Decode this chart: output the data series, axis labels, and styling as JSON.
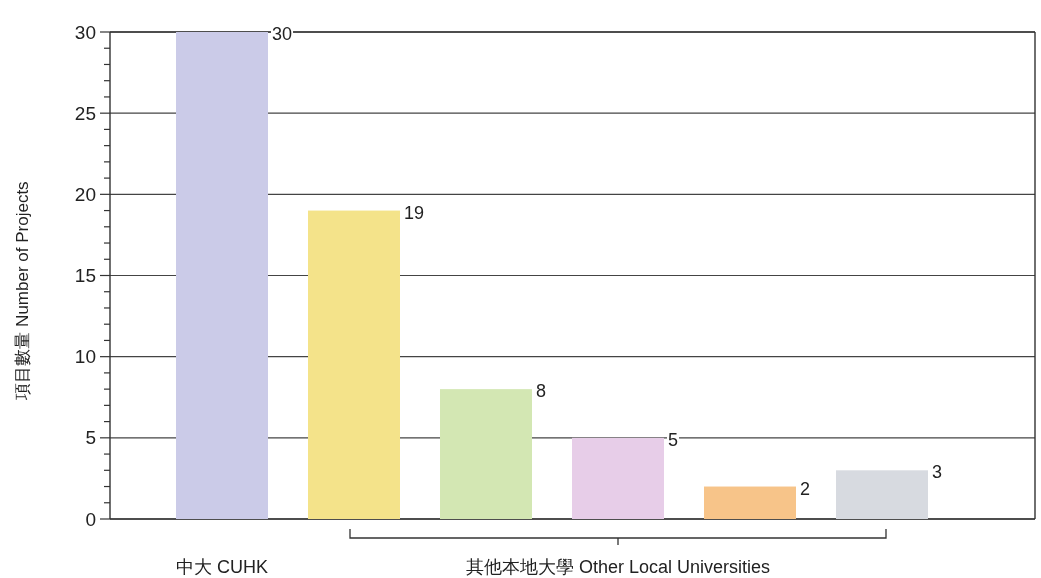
{
  "chart_data": {
    "type": "bar",
    "ylabel": "項目數量 Number of Projects",
    "categories": [
      "中大 CUHK",
      null,
      null,
      null,
      null,
      null
    ],
    "values": [
      30,
      19,
      8,
      5,
      2,
      3
    ],
    "colors": [
      "#cbcbe8",
      "#f4e38a",
      "#d3e7b3",
      "#e7cde8",
      "#f7c489",
      "#d7dae0"
    ],
    "ylim": [
      0,
      30
    ],
    "yticks": [
      0,
      {
        "value": 1,
        "label": null
      },
      {
        "value": 2,
        "label": null
      },
      {
        "value": 3,
        "label": null
      },
      {
        "value": 4,
        "label": null
      },
      5,
      {
        "value": 6,
        "label": null
      },
      {
        "value": 7,
        "label": null
      },
      {
        "value": 8,
        "label": null
      },
      {
        "value": 9,
        "label": null
      },
      10,
      {
        "value": 11,
        "label": null
      },
      {
        "value": 12,
        "label": null
      },
      {
        "value": 13,
        "label": null
      },
      {
        "value": 14,
        "label": null
      },
      15,
      {
        "value": 16,
        "label": null
      },
      {
        "value": 17,
        "label": null
      },
      {
        "value": 18,
        "label": null
      },
      {
        "value": 19,
        "label": null
      },
      20,
      {
        "value": 21,
        "label": null
      },
      {
        "value": 22,
        "label": null
      },
      {
        "value": 23,
        "label": null
      },
      {
        "value": 24,
        "label": null
      },
      25,
      {
        "value": 26,
        "label": null
      },
      {
        "value": 27,
        "label": null
      },
      {
        "value": 28,
        "label": null
      },
      {
        "value": 29,
        "label": null
      },
      30
    ],
    "grid": "y",
    "data_labels": true,
    "annotations": [
      "其他本地大學 Other Local Universities"
    ]
  }
}
